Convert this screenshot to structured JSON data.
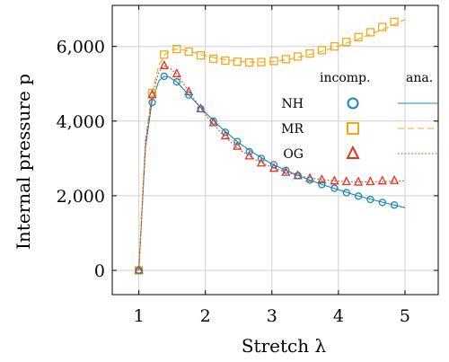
{
  "chart_data": {
    "type": "line",
    "xlabel": "Stretch λ",
    "ylabel": "Internal pressure p",
    "xlim": [
      0.6,
      5.5
    ],
    "ylim": [
      -650,
      7100
    ],
    "xticks": [
      1,
      2,
      3,
      4,
      5
    ],
    "xtick_labels": [
      "1",
      "2",
      "3",
      "4",
      "5"
    ],
    "yticks": [
      0,
      2000,
      4000,
      6000
    ],
    "ytick_labels": [
      "0",
      "2,000",
      "4,000",
      "6,000"
    ],
    "grid": true,
    "legend_position": "center-right",
    "legend_headers": [
      "incomp.",
      "ana."
    ],
    "series": [
      {
        "name": "NH",
        "color": "#1a86b8",
        "marker": "circle",
        "line_style": "solid",
        "points_x": [
          1.0,
          1.2,
          1.38,
          1.57,
          1.75,
          1.93,
          2.12,
          2.3,
          2.48,
          2.66,
          2.84,
          3.03,
          3.21,
          3.39,
          3.57,
          3.75,
          3.94,
          4.12,
          4.3,
          4.48,
          4.66,
          4.84
        ],
        "points_y": [
          0,
          4500,
          5200,
          5050,
          4700,
          4330,
          4000,
          3700,
          3450,
          3180,
          3000,
          2830,
          2680,
          2540,
          2420,
          2300,
          2200,
          2080,
          1990,
          1900,
          1820,
          1750
        ],
        "line_x": [
          1.0,
          1.1,
          1.2,
          1.3,
          1.38,
          1.45,
          1.57,
          1.75,
          2.0,
          2.25,
          2.5,
          2.75,
          3.0,
          3.25,
          3.5,
          3.75,
          4.0,
          4.25,
          4.5,
          4.75,
          5.0
        ],
        "line_y": [
          0,
          3300,
          4550,
          5080,
          5200,
          5180,
          5050,
          4700,
          4230,
          3800,
          3420,
          3120,
          2850,
          2650,
          2470,
          2300,
          2160,
          2020,
          1900,
          1790,
          1680
        ]
      },
      {
        "name": "MR",
        "color": "#f0a81a",
        "marker": "square",
        "line_style": "dashed",
        "points_x": [
          1.0,
          1.2,
          1.38,
          1.57,
          1.75,
          1.93,
          2.12,
          2.3,
          2.48,
          2.66,
          2.84,
          3.03,
          3.21,
          3.39,
          3.57,
          3.75,
          3.94,
          4.12,
          4.3,
          4.48,
          4.66,
          4.84
        ],
        "points_y": [
          0,
          4750,
          5780,
          5930,
          5860,
          5760,
          5670,
          5620,
          5590,
          5570,
          5580,
          5610,
          5660,
          5730,
          5810,
          5900,
          6000,
          6120,
          6250,
          6380,
          6520,
          6660
        ],
        "line_x": [
          1.0,
          1.1,
          1.2,
          1.3,
          1.4,
          1.5,
          1.6,
          1.8,
          2.0,
          2.25,
          2.5,
          2.75,
          3.0,
          3.25,
          3.5,
          3.75,
          4.0,
          4.25,
          4.5,
          4.75,
          5.0
        ],
        "line_y": [
          0,
          3500,
          4750,
          5500,
          5800,
          5920,
          5930,
          5850,
          5750,
          5660,
          5600,
          5575,
          5590,
          5650,
          5750,
          5870,
          6010,
          6170,
          6340,
          6520,
          6720
        ]
      },
      {
        "name": "OG",
        "color": "#e8341c",
        "marker": "triangle",
        "line_style": "dotted",
        "points_x": [
          1.0,
          1.2,
          1.38,
          1.57,
          1.75,
          1.93,
          2.12,
          2.3,
          2.48,
          2.66,
          2.84,
          3.03,
          3.21,
          3.39,
          3.57,
          3.75,
          3.94,
          4.12,
          4.3,
          4.48,
          4.66,
          4.84
        ],
        "points_y": [
          0,
          4700,
          5480,
          5260,
          4780,
          4320,
          3950,
          3600,
          3320,
          3060,
          2870,
          2730,
          2620,
          2530,
          2460,
          2420,
          2390,
          2370,
          2360,
          2370,
          2390,
          2400
        ],
        "line_x": [
          1.0,
          1.1,
          1.2,
          1.3,
          1.38,
          1.45,
          1.57,
          1.75,
          2.0,
          2.25,
          2.5,
          2.75,
          3.0,
          3.25,
          3.5,
          3.75,
          4.0,
          4.25,
          4.5,
          4.75,
          5.0
        ],
        "line_y": [
          0,
          3450,
          4700,
          5320,
          5480,
          5440,
          5260,
          4800,
          4170,
          3650,
          3250,
          2960,
          2760,
          2610,
          2500,
          2430,
          2390,
          2370,
          2370,
          2380,
          2400
        ]
      }
    ]
  }
}
